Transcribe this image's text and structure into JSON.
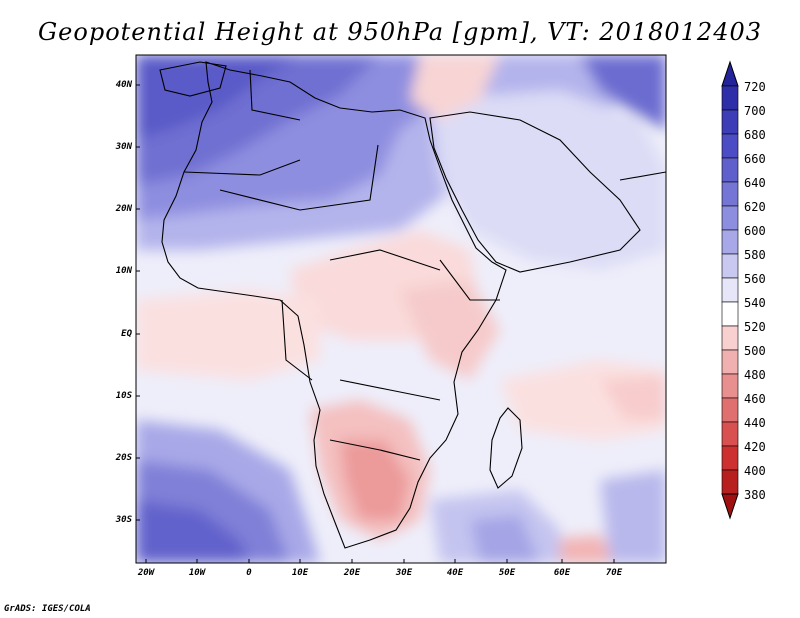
{
  "title": "Geopotential Height at 950hPa [gpm], VT: 2018012403",
  "footer": "GrADS: IGES/COLA",
  "lat_labels": [
    "40N",
    "30N",
    "20N",
    "10N",
    "EQ",
    "10S",
    "20S",
    "30S"
  ],
  "lon_labels": [
    "20W",
    "10W",
    "0",
    "10E",
    "20E",
    "30E",
    "40E",
    "50E",
    "60E",
    "70E"
  ],
  "colorbar": {
    "levels": [
      "720",
      "700",
      "680",
      "660",
      "640",
      "620",
      "600",
      "580",
      "560",
      "540",
      "520",
      "500",
      "480",
      "460",
      "440",
      "420",
      "400",
      "380"
    ],
    "colors": [
      "#23239a",
      "#2e2ea8",
      "#3d3db8",
      "#4c4cc4",
      "#6060cc",
      "#7575d6",
      "#8e8ee0",
      "#a8a8e8",
      "#c8c8f0",
      "#e6e6f8",
      "#ffffff",
      "#f8d0d0",
      "#f0b0b0",
      "#e89090",
      "#e07070",
      "#d85050",
      "#cc3030",
      "#b82020",
      "#a01010"
    ]
  },
  "colors": {
    "land_border": "#000000",
    "background": "#ffffff"
  }
}
